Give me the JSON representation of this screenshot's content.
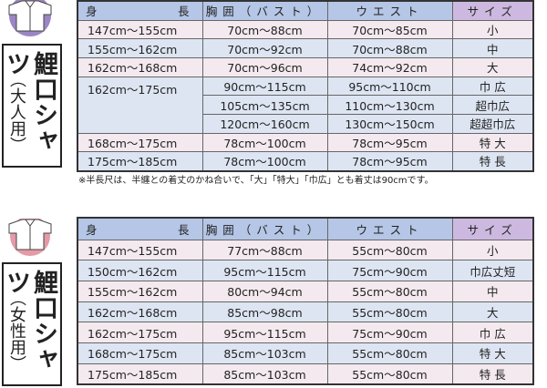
{
  "adult": {
    "title": "鯉口シャツ",
    "subtitle": "（大人用）",
    "icon": "shirt-icon",
    "icon_color": "#9b86c4",
    "headers": [
      "身",
      "長",
      "胸囲（バスト）",
      "ウエスト",
      "サイズ"
    ],
    "rows": [
      [
        "147cm〜155cm",
        "70cm〜88cm",
        "70cm〜85cm",
        "小"
      ],
      [
        "155cm〜162cm",
        "70cm〜92cm",
        "70cm〜88cm",
        "中"
      ],
      [
        "162cm〜168cm",
        "70cm〜96cm",
        "74cm〜92cm",
        "大"
      ],
      [
        "162cm〜175cm",
        "90cm〜115cm",
        "95cm〜110cm",
        "巾 広"
      ],
      [
        "",
        "105cm〜135cm",
        "110cm〜130cm",
        "超巾広"
      ],
      [
        "",
        "120cm〜160cm",
        "130cm〜150cm",
        "超超巾広"
      ],
      [
        "168cm〜175cm",
        "78cm〜100cm",
        "78cm〜95cm",
        "特 大"
      ],
      [
        "175cm〜185cm",
        "78cm〜100cm",
        "78cm〜95cm",
        "特 長"
      ]
    ],
    "note": "※半長尺は、半纏との着丈のかね合いで、「大」「特大」「巾広」とも着丈は90cmです。"
  },
  "women": {
    "title": "鯉口シャツ",
    "subtitle": "（女性用）",
    "icon": "shirt-icon",
    "icon_color": "#e59aa8",
    "headers": [
      "身",
      "長",
      "胸囲（バスト）",
      "ウエスト",
      "サイズ"
    ],
    "rows": [
      [
        "147cm〜155cm",
        "77cm〜88cm",
        "55cm〜80cm",
        "小"
      ],
      [
        "150cm〜162cm",
        "95cm〜115cm",
        "75cm〜90cm",
        "巾広丈短"
      ],
      [
        "155cm〜162cm",
        "80cm〜94cm",
        "55cm〜80cm",
        "中"
      ],
      [
        "162cm〜168cm",
        "85cm〜98cm",
        "55cm〜80cm",
        "大"
      ],
      [
        "162cm〜175cm",
        "95cm〜115cm",
        "75cm〜90cm",
        "巾 広"
      ],
      [
        "168cm〜175cm",
        "85cm〜103cm",
        "55cm〜80cm",
        "特 大"
      ],
      [
        "175cm〜185cm",
        "85cm〜103cm",
        "55cm〜80cm",
        "特 長"
      ]
    ]
  }
}
